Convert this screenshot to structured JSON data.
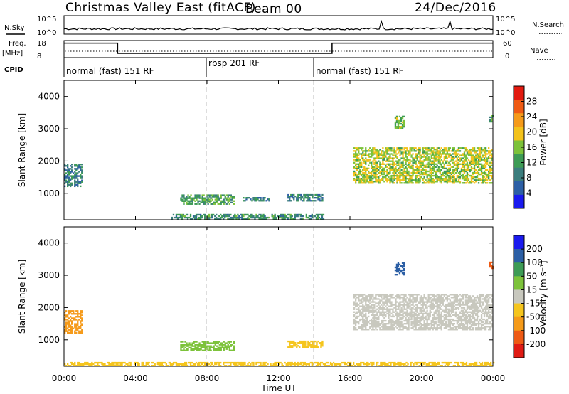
{
  "header": {
    "title": "Christmas Valley East (fitACF)",
    "beam": "Beam 00",
    "date": "24/Dec/2016"
  },
  "top_panels": {
    "nsky_label": "N.Sky",
    "nsearch_label": "N.Search",
    "noise_ticks": [
      "10^5",
      "10^0"
    ],
    "freq_label": "Freq.",
    "freq_unit": "[MHz]",
    "freq_ticks": [
      "18",
      "8"
    ],
    "nave_label": "Nave",
    "nave_ticks": [
      "60",
      "0"
    ],
    "cpid_label": "CPID",
    "cpid_modes": [
      {
        "text": "normal (fast) 151 RF",
        "start_hour": 0
      },
      {
        "text": "rbsp 201 RF",
        "start_hour": 8
      },
      {
        "text": "normal (fast) 151 RF",
        "start_hour": 14
      }
    ],
    "freq_steps": [
      {
        "from_hour": 0,
        "to_hour": 3,
        "value": 16.5
      },
      {
        "from_hour": 3,
        "to_hour": 15,
        "value": 10.5
      },
      {
        "from_hour": 15,
        "to_hour": 24,
        "value": 16.5
      }
    ]
  },
  "x_axis": {
    "label": "Time UT",
    "ticks": [
      "00:00",
      "04:00",
      "08:00",
      "12:00",
      "16:00",
      "20:00",
      "00:00"
    ],
    "tick_hours": [
      0,
      4,
      8,
      12,
      16,
      20,
      24
    ]
  },
  "colors": {
    "power": [
      "#1a1aee",
      "#2c5fa5",
      "#3b7d7d",
      "#3d9b55",
      "#7cc23a",
      "#f3c21b",
      "#f59a19",
      "#ef5a13",
      "#e21a0f"
    ],
    "velocity": [
      "#e01b14",
      "#ee5a14",
      "#f59a19",
      "#f5c51d",
      "#c8c8be",
      "#7cc23a",
      "#3d9b55",
      "#2c5fa5",
      "#1a1aee"
    ],
    "ground": "#b4b4aa"
  },
  "chart_data": [
    {
      "type": "heatmap",
      "title": "Power",
      "ylabel": "Slant Range [km]",
      "xlabel": "Time UT",
      "ylim": [
        180,
        4500
      ],
      "xlim": [
        0,
        24
      ],
      "yticks": [
        1000,
        2000,
        3000,
        4000
      ],
      "colorbar": {
        "label": "Power [dB]",
        "range": [
          0,
          30
        ],
        "ticks": [
          4,
          8,
          12,
          16,
          20,
          24,
          28
        ]
      },
      "regions": [
        {
          "t0": 0.0,
          "t1": 1.0,
          "r0": 1200,
          "r1": 1900,
          "level": 8
        },
        {
          "t0": 6.0,
          "t1": 14.5,
          "r0": 180,
          "r1": 320,
          "level": 10
        },
        {
          "t0": 6.5,
          "t1": 9.5,
          "r0": 650,
          "r1": 950,
          "level": 12
        },
        {
          "t0": 10.0,
          "t1": 11.5,
          "r0": 750,
          "r1": 850,
          "level": 9
        },
        {
          "t0": 12.5,
          "t1": 14.5,
          "r0": 750,
          "r1": 950,
          "level": 9
        },
        {
          "t0": 16.2,
          "t1": 23.9,
          "r0": 1300,
          "r1": 2400,
          "level": 16
        },
        {
          "t0": 18.5,
          "t1": 19.0,
          "r0": 3000,
          "r1": 3400,
          "level": 14
        },
        {
          "t0": 23.8,
          "t1": 24.0,
          "r0": 3200,
          "r1": 3400,
          "level": 12
        }
      ]
    },
    {
      "type": "heatmap",
      "title": "Velocity",
      "ylabel": "Slant Range [km]",
      "xlabel": "Time UT",
      "ylim": [
        180,
        4500
      ],
      "xlim": [
        0,
        24
      ],
      "yticks": [
        1000,
        2000,
        3000,
        4000
      ],
      "colorbar": {
        "label": "Velocity [m s⁻¹]",
        "range": [
          -250,
          250
        ],
        "ticks": [
          "200",
          "100",
          "50",
          "15",
          "-15",
          "-50",
          "-100",
          "-200"
        ]
      },
      "regions": [
        {
          "t0": 0.0,
          "t1": 1.0,
          "r0": 1200,
          "r1": 1900,
          "level": -60
        },
        {
          "t0": 0.0,
          "t1": 24.0,
          "r0": 180,
          "r1": 300,
          "level": -30
        },
        {
          "t0": 6.5,
          "t1": 9.5,
          "r0": 650,
          "r1": 950,
          "level": 40
        },
        {
          "t0": 12.5,
          "t1": 14.5,
          "r0": 750,
          "r1": 950,
          "level": -30
        },
        {
          "t0": 16.2,
          "t1": 23.9,
          "r0": 1300,
          "r1": 2400,
          "level": 0
        },
        {
          "t0": 18.5,
          "t1": 19.0,
          "r0": 3000,
          "r1": 3400,
          "level": 150
        },
        {
          "t0": 23.8,
          "t1": 24.0,
          "r0": 3200,
          "r1": 3400,
          "level": -180
        }
      ]
    }
  ]
}
